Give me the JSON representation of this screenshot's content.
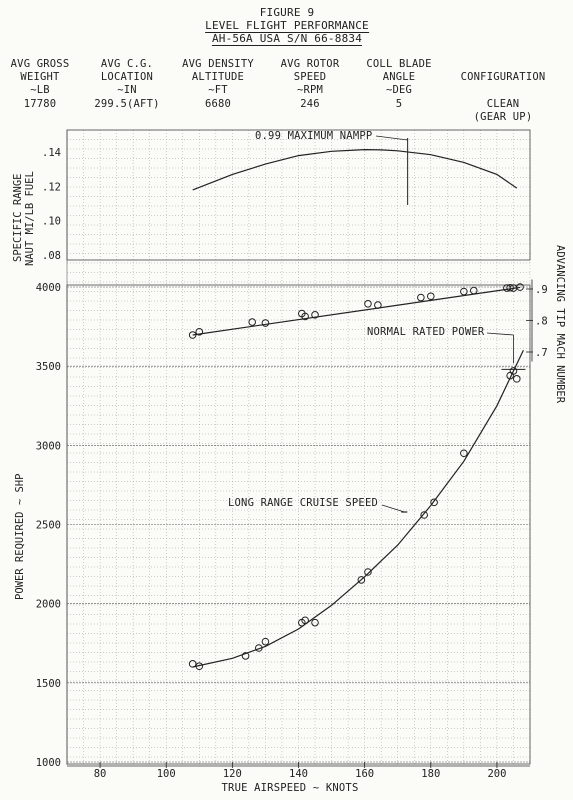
{
  "header": {
    "figure": "FIGURE 9",
    "title": "LEVEL FLIGHT PERFORMANCE",
    "aircraft": "AH-56A  USA  S/N 66-8834"
  },
  "conditions": [
    {
      "label1": "AVG GROSS",
      "label2": "WEIGHT",
      "unit": "~LB",
      "value": "17780"
    },
    {
      "label1": "AVG C.G.",
      "label2": "LOCATION",
      "unit": "~IN",
      "value": "299.5(AFT)"
    },
    {
      "label1": "AVG DENSITY",
      "label2": "ALTITUDE",
      "unit": "~FT",
      "value": "6680"
    },
    {
      "label1": "AVG ROTOR",
      "label2": "SPEED",
      "unit": "~RPM",
      "value": "246"
    },
    {
      "label1": "COLL BLADE",
      "label2": "ANGLE",
      "unit": "~DEG",
      "value": "5"
    },
    {
      "label1": "CONFIGURATION",
      "label2": "",
      "unit": "",
      "value": "CLEAN",
      "value2": "(GEAR UP)"
    }
  ],
  "chart_data": {
    "type": "line",
    "xlabel": "TRUE AIRSPEED ~ KNOTS",
    "x_ticks": [
      80,
      100,
      120,
      140,
      160,
      180,
      200
    ],
    "xlim": [
      70,
      210
    ],
    "panels": {
      "specific_range": {
        "ylabel_line1": "SPECIFIC RANGE",
        "ylabel_line2": "NAUT MI/LB FUEL",
        "ylim": [
          0.08,
          0.15
        ],
        "y_ticks": [
          ".08",
          ".10",
          ".12",
          ".14"
        ],
        "curve_x": [
          108,
          120,
          130,
          140,
          150,
          160,
          165,
          170,
          180,
          190,
          200,
          206
        ],
        "curve_y": [
          0.118,
          0.127,
          0.133,
          0.138,
          0.1405,
          0.1415,
          0.1413,
          0.1408,
          0.1385,
          0.134,
          0.127,
          0.119
        ],
        "annotation": "0.99 MAXIMUM NAMPP",
        "annotation_x": 173
      },
      "tip_mach": {
        "ylabel": "ADVANCING TIP MACH NUMBER",
        "ylim": [
          0.65,
          0.95
        ],
        "y_ticks": [
          ".7",
          ".8",
          ".9"
        ],
        "points_x": [
          108,
          110,
          126,
          130,
          141,
          142,
          145,
          161,
          164,
          177,
          180,
          190,
          193,
          203,
          204,
          205,
          207
        ],
        "points_y": [
          0.754,
          0.764,
          0.795,
          0.792,
          0.822,
          0.813,
          0.818,
          0.853,
          0.849,
          0.873,
          0.877,
          0.892,
          0.895,
          0.903,
          0.904,
          0.903,
          0.906
        ]
      },
      "power": {
        "ylabel": "POWER REQUIRED ~ SHP",
        "ylim": [
          1000,
          4000
        ],
        "y_ticks": [
          1000,
          1500,
          2000,
          2500,
          3000,
          3500,
          4000
        ],
        "points_x": [
          108,
          110,
          124,
          128,
          130,
          141,
          142,
          145,
          159,
          161,
          178,
          181,
          190,
          204,
          205,
          206
        ],
        "points_y": [
          1620,
          1605,
          1670,
          1720,
          1760,
          1880,
          1895,
          1880,
          2150,
          2200,
          2560,
          2640,
          2950,
          3440,
          3470,
          3420
        ],
        "curve_x": [
          108,
          120,
          130,
          140,
          150,
          160,
          170,
          180,
          190,
          200,
          205,
          208
        ],
        "curve_y": [
          1600,
          1655,
          1730,
          1840,
          1990,
          2170,
          2370,
          2620,
          2900,
          3250,
          3470,
          3600
        ],
        "normal_rated_power_label": "NORMAL RATED POWER",
        "long_range_cruise_label": "LONG RANGE CRUISE SPEED",
        "long_range_cruise_x": 172
      }
    }
  }
}
